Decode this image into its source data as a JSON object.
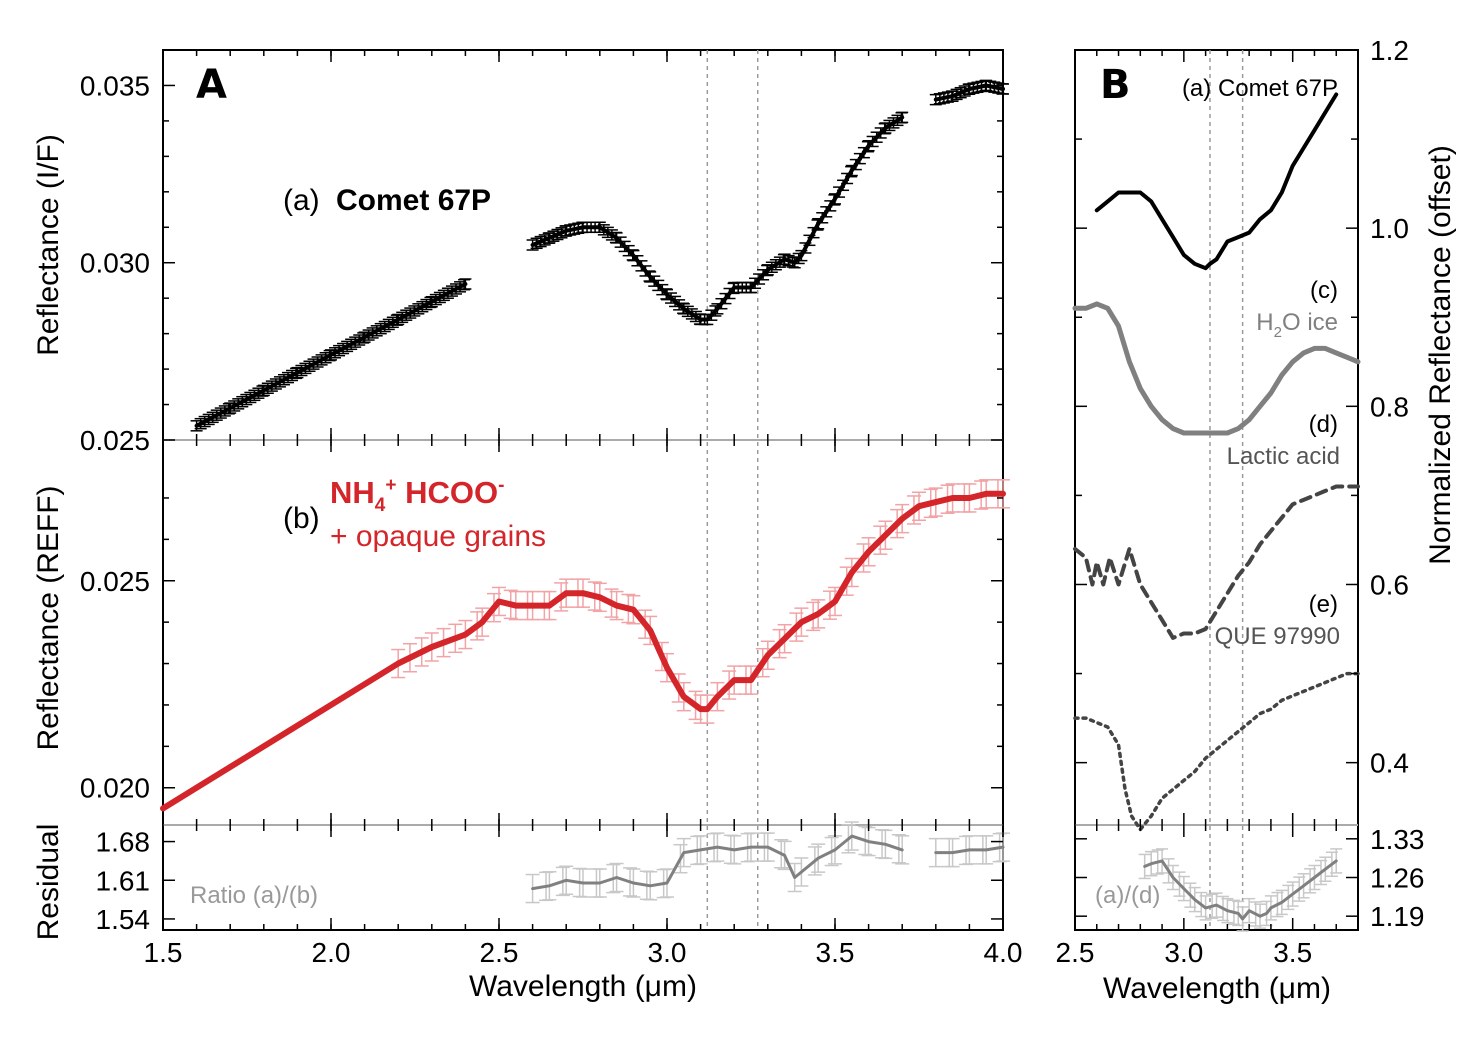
{
  "panel_a": {
    "letter": "A",
    "xlabel": "Wavelength (μm)",
    "ylabel_top": "Reflectance (I/F)",
    "ylabel_mid": "Reflectance (REFF)",
    "ylabel_bot": "Residual",
    "label_a_prefix": "(a)",
    "label_a_name": "Comet 67P",
    "label_b_prefix": "(b)",
    "label_b_line1_nh": "NH",
    "label_b_line1_sub": "4",
    "label_b_line1_sup": "+",
    "label_b_line1_rest": " HCOO",
    "label_b_line1_sup2": "-",
    "label_b_line2": "+ opaque grains",
    "ratio_label": "Ratio (a)/(b)"
  },
  "panel_b": {
    "letter": "B",
    "xlabel": "Wavelength (μm)",
    "ylabel": "Normalized Reflectance (offset)",
    "label_a": "(a) Comet 67P",
    "label_c": "(c)",
    "label_c_name_pre": "H",
    "label_c_name_sub": "2",
    "label_c_name_post": "O ice",
    "label_d": "(d)",
    "label_d_name": "Lactic acid",
    "label_e": "(e)",
    "label_e_name": "QUE 97990",
    "ratio_label": "(a)/(d)"
  },
  "colors": {
    "comet": "#000000",
    "lab_red": "#d4252a",
    "lab_red_err": "#f2a3a6",
    "gray": "#808080",
    "gray_err": "#c8c8c8",
    "dash": "#444444",
    "guide": "#9a9a9a"
  },
  "chart_data": [
    {
      "type": "line",
      "panel": "A-top",
      "xlim": [
        1.5,
        4.0
      ],
      "ylim": [
        0.025,
        0.036
      ],
      "xticks": [
        "1.5",
        "2.0",
        "2.5",
        "3.0",
        "3.5",
        "4.0"
      ],
      "yticks": [
        "0.025",
        "0.030",
        "0.035"
      ],
      "guides_x": [
        3.12,
        3.27
      ],
      "series": [
        {
          "name": "Comet 67P",
          "segments": [
            {
              "x": [
                1.6,
                1.7,
                1.8,
                1.9,
                2.0,
                2.1,
                2.2,
                2.3,
                2.4
              ],
              "y": [
                0.0254,
                0.0259,
                0.0264,
                0.0269,
                0.0274,
                0.0279,
                0.0284,
                0.0289,
                0.0294
              ]
            },
            {
              "x": [
                2.6,
                2.65,
                2.7,
                2.75,
                2.8,
                2.85,
                2.9,
                2.95,
                3.0,
                3.05,
                3.1,
                3.12,
                3.15,
                3.2,
                3.25,
                3.3,
                3.35,
                3.38,
                3.4,
                3.45,
                3.5,
                3.55,
                3.6,
                3.65,
                3.7
              ],
              "y": [
                0.0305,
                0.0307,
                0.0309,
                0.031,
                0.031,
                0.0307,
                0.0302,
                0.0296,
                0.0291,
                0.0287,
                0.0284,
                0.0284,
                0.0287,
                0.0293,
                0.0293,
                0.0298,
                0.0301,
                0.03,
                0.0302,
                0.0311,
                0.0318,
                0.0326,
                0.0333,
                0.0338,
                0.0341
              ]
            },
            {
              "x": [
                3.8,
                3.85,
                3.9,
                3.95,
                4.0
              ],
              "y": [
                0.0346,
                0.0347,
                0.0349,
                0.035,
                0.0349
              ]
            }
          ]
        }
      ]
    },
    {
      "type": "line",
      "panel": "A-middle",
      "xlim": [
        1.5,
        4.0
      ],
      "ylim": [
        0.0191,
        0.0284
      ],
      "yticks": [
        "0.020",
        "0.025"
      ],
      "series": [
        {
          "name": "NH4+ HCOO- + opaque grains",
          "x": [
            1.5,
            1.6,
            1.8,
            2.0,
            2.2,
            2.3,
            2.4,
            2.45,
            2.5,
            2.55,
            2.6,
            2.65,
            2.7,
            2.75,
            2.8,
            2.85,
            2.9,
            2.95,
            3.0,
            3.05,
            3.1,
            3.12,
            3.15,
            3.2,
            3.25,
            3.3,
            3.35,
            3.4,
            3.45,
            3.5,
            3.55,
            3.6,
            3.65,
            3.7,
            3.75,
            3.8,
            3.85,
            3.9,
            3.95,
            4.0
          ],
          "y": [
            0.0195,
            0.02,
            0.021,
            0.022,
            0.023,
            0.0234,
            0.0237,
            0.024,
            0.0245,
            0.0244,
            0.0244,
            0.0244,
            0.0247,
            0.0247,
            0.0246,
            0.0244,
            0.0243,
            0.0238,
            0.0229,
            0.0222,
            0.0219,
            0.0219,
            0.0222,
            0.0226,
            0.0226,
            0.0232,
            0.0236,
            0.024,
            0.0242,
            0.0245,
            0.0252,
            0.0257,
            0.0261,
            0.0265,
            0.0268,
            0.0269,
            0.027,
            0.027,
            0.0271,
            0.0271
          ]
        }
      ]
    },
    {
      "type": "line",
      "panel": "A-residual",
      "xlim": [
        1.5,
        4.0
      ],
      "ylim": [
        1.52,
        1.71
      ],
      "yticks": [
        "1.54",
        "1.61",
        "1.68"
      ],
      "series": [
        {
          "name": "Ratio (a)/(b)",
          "segments": [
            {
              "x": [
                2.6,
                2.65,
                2.7,
                2.75,
                2.8,
                2.85,
                2.9,
                2.95,
                3.0,
                3.05,
                3.1,
                3.15,
                3.2,
                3.25,
                3.3,
                3.35,
                3.38,
                3.4,
                3.45,
                3.5,
                3.55,
                3.6,
                3.65,
                3.7
              ],
              "y": [
                1.595,
                1.6,
                1.61,
                1.605,
                1.605,
                1.615,
                1.605,
                1.6,
                1.605,
                1.66,
                1.665,
                1.67,
                1.665,
                1.67,
                1.67,
                1.655,
                1.615,
                1.625,
                1.65,
                1.665,
                1.69,
                1.68,
                1.675,
                1.665
              ]
            },
            {
              "x": [
                3.8,
                3.85,
                3.9,
                3.95,
                4.0
              ],
              "y": [
                1.66,
                1.66,
                1.665,
                1.665,
                1.67
              ]
            }
          ]
        }
      ]
    },
    {
      "type": "line",
      "panel": "B-main",
      "xlim": [
        2.5,
        3.8
      ],
      "ylim": [
        0.33,
        1.2
      ],
      "xticks": [
        "2.5",
        "3.0",
        "3.5"
      ],
      "yticks": [
        "0.4",
        "0.6",
        "0.8",
        "1.0",
        "1.2"
      ],
      "series": [
        {
          "name": "(a) Comet 67P",
          "x": [
            2.6,
            2.65,
            2.7,
            2.75,
            2.8,
            2.85,
            2.9,
            2.95,
            3.0,
            3.05,
            3.1,
            3.12,
            3.15,
            3.2,
            3.25,
            3.3,
            3.35,
            3.4,
            3.45,
            3.5,
            3.55,
            3.6,
            3.65,
            3.7
          ],
          "y": [
            1.02,
            1.03,
            1.04,
            1.04,
            1.04,
            1.03,
            1.01,
            0.99,
            0.97,
            0.96,
            0.955,
            0.96,
            0.965,
            0.985,
            0.99,
            0.995,
            1.01,
            1.02,
            1.04,
            1.07,
            1.09,
            1.11,
            1.13,
            1.15
          ]
        },
        {
          "name": "(c) H2O ice",
          "x": [
            2.5,
            2.55,
            2.6,
            2.65,
            2.7,
            2.75,
            2.8,
            2.85,
            2.9,
            2.95,
            3.0,
            3.05,
            3.1,
            3.15,
            3.2,
            3.25,
            3.3,
            3.35,
            3.4,
            3.45,
            3.5,
            3.55,
            3.6,
            3.65,
            3.7,
            3.75,
            3.8
          ],
          "y": [
            0.91,
            0.91,
            0.915,
            0.91,
            0.89,
            0.85,
            0.82,
            0.8,
            0.785,
            0.775,
            0.77,
            0.77,
            0.77,
            0.77,
            0.77,
            0.775,
            0.785,
            0.8,
            0.815,
            0.835,
            0.85,
            0.86,
            0.865,
            0.865,
            0.86,
            0.855,
            0.85
          ]
        },
        {
          "name": "(d) Lactic acid",
          "x": [
            2.5,
            2.55,
            2.58,
            2.6,
            2.63,
            2.66,
            2.7,
            2.75,
            2.8,
            2.85,
            2.9,
            2.95,
            3.0,
            3.05,
            3.1,
            3.15,
            3.2,
            3.25,
            3.3,
            3.35,
            3.4,
            3.45,
            3.5,
            3.55,
            3.6,
            3.65,
            3.7,
            3.75,
            3.8
          ],
          "y": [
            0.64,
            0.63,
            0.6,
            0.625,
            0.6,
            0.63,
            0.6,
            0.64,
            0.6,
            0.58,
            0.56,
            0.54,
            0.545,
            0.545,
            0.55,
            0.57,
            0.59,
            0.61,
            0.625,
            0.645,
            0.66,
            0.675,
            0.69,
            0.695,
            0.7,
            0.705,
            0.71,
            0.71,
            0.71
          ]
        },
        {
          "name": "(e) QUE 97990",
          "x": [
            2.5,
            2.55,
            2.6,
            2.65,
            2.7,
            2.73,
            2.76,
            2.8,
            2.85,
            2.9,
            2.95,
            3.0,
            3.05,
            3.1,
            3.15,
            3.2,
            3.25,
            3.3,
            3.35,
            3.4,
            3.45,
            3.5,
            3.55,
            3.6,
            3.65,
            3.7,
            3.75,
            3.8
          ],
          "y": [
            0.45,
            0.45,
            0.445,
            0.44,
            0.42,
            0.37,
            0.34,
            0.325,
            0.34,
            0.36,
            0.37,
            0.38,
            0.39,
            0.405,
            0.415,
            0.425,
            0.435,
            0.445,
            0.455,
            0.46,
            0.47,
            0.475,
            0.48,
            0.485,
            0.49,
            0.495,
            0.5,
            0.5
          ]
        }
      ]
    },
    {
      "type": "line",
      "panel": "B-residual",
      "xlim": [
        2.5,
        3.8
      ],
      "ylim": [
        1.165,
        1.355
      ],
      "yticks": [
        "1.19",
        "1.26",
        "1.33"
      ],
      "series": [
        {
          "name": "(a)/(d)",
          "x": [
            2.82,
            2.85,
            2.9,
            2.95,
            3.0,
            3.05,
            3.1,
            3.15,
            3.2,
            3.25,
            3.27,
            3.3,
            3.35,
            3.38,
            3.4,
            3.45,
            3.5,
            3.55,
            3.6,
            3.65,
            3.7
          ],
          "y": [
            1.28,
            1.285,
            1.29,
            1.26,
            1.24,
            1.22,
            1.205,
            1.21,
            1.2,
            1.195,
            1.185,
            1.2,
            1.19,
            1.195,
            1.205,
            1.215,
            1.23,
            1.245,
            1.26,
            1.275,
            1.29
          ]
        }
      ]
    }
  ]
}
